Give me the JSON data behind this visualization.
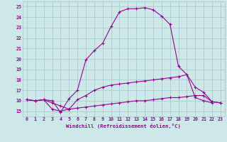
{
  "xlabel": "Windchill (Refroidissement éolien,°C)",
  "ylabel": "",
  "bg_color": "#cce8e8",
  "grid_color": "#aacccc",
  "line_color": "#990099",
  "xlim": [
    -0.5,
    23.5
  ],
  "ylim": [
    14.5,
    25.5
  ],
  "yticks": [
    15,
    16,
    17,
    18,
    19,
    20,
    21,
    22,
    23,
    24,
    25
  ],
  "xticks": [
    0,
    1,
    2,
    3,
    4,
    5,
    6,
    7,
    8,
    9,
    10,
    11,
    12,
    13,
    14,
    15,
    16,
    17,
    18,
    19,
    20,
    21,
    22,
    23
  ],
  "curve1_x": [
    0,
    1,
    2,
    3,
    4,
    5,
    6,
    7,
    8,
    9,
    10,
    11,
    12,
    13,
    14,
    15,
    16,
    17,
    18,
    19,
    20,
    21,
    22
  ],
  "curve1_y": [
    16.1,
    16.0,
    16.1,
    16.0,
    14.9,
    16.2,
    17.0,
    19.9,
    20.8,
    21.5,
    23.1,
    24.5,
    24.8,
    24.8,
    24.9,
    24.7,
    24.1,
    23.3,
    19.3,
    18.5,
    16.3,
    16.0,
    15.8
  ],
  "curve2_x": [
    0,
    1,
    2,
    3,
    4,
    5,
    6,
    7,
    8,
    9,
    10,
    11,
    12,
    13,
    14,
    15,
    16,
    17,
    18,
    19,
    20,
    21,
    22,
    23
  ],
  "curve2_y": [
    16.1,
    16.0,
    16.1,
    15.2,
    15.0,
    15.2,
    16.1,
    16.5,
    17.0,
    17.3,
    17.5,
    17.6,
    17.7,
    17.8,
    17.9,
    18.0,
    18.1,
    18.2,
    18.3,
    18.5,
    17.3,
    16.8,
    15.9,
    15.8
  ],
  "curve3_x": [
    0,
    1,
    2,
    3,
    4,
    5,
    6,
    7,
    8,
    9,
    10,
    11,
    12,
    13,
    14,
    15,
    16,
    17,
    18,
    19,
    20,
    21,
    22,
    23
  ],
  "curve3_y": [
    16.1,
    16.0,
    16.1,
    15.8,
    15.5,
    15.2,
    15.3,
    15.4,
    15.5,
    15.6,
    15.7,
    15.8,
    15.9,
    16.0,
    16.0,
    16.1,
    16.2,
    16.3,
    16.3,
    16.4,
    16.5,
    16.5,
    15.9,
    15.8
  ],
  "font_size_tick": 4.8,
  "font_size_xlabel": 5.2,
  "marker_size": 2.5,
  "line_width": 0.8
}
